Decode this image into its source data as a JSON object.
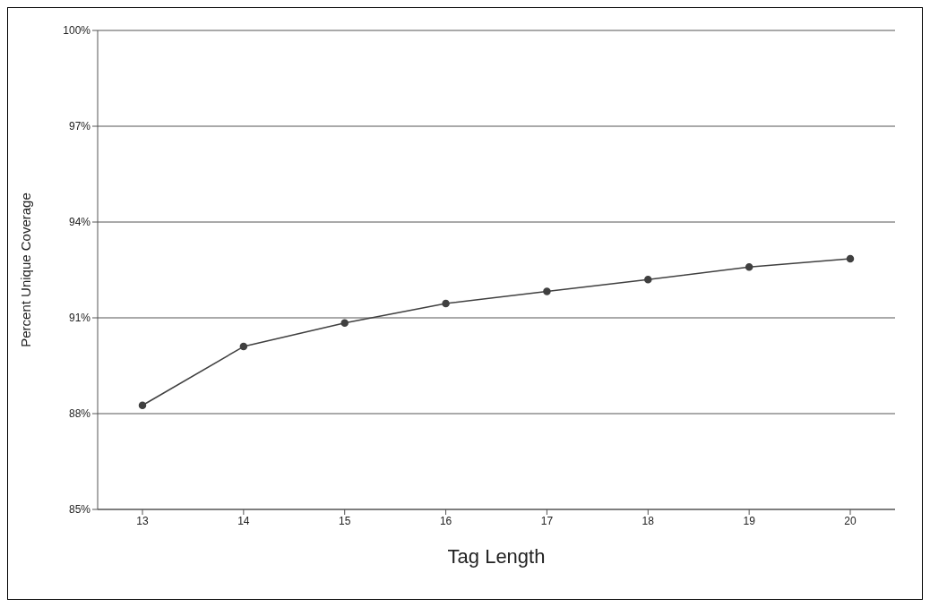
{
  "chart_data": {
    "type": "line",
    "xlabel": "Tag Length",
    "ylabel": "Percent Unique Coverage",
    "categories": [
      "13",
      "14",
      "15",
      "16",
      "17",
      "18",
      "19",
      "20"
    ],
    "series": [
      {
        "color": "#404040",
        "values": [
          88.26,
          90.1,
          90.84,
          91.45,
          91.83,
          92.2,
          92.59,
          92.85
        ]
      }
    ],
    "ylim": [
      85,
      100
    ],
    "yticks": [
      {
        "value": 85,
        "label": "85%"
      },
      {
        "value": 88,
        "label": "88%"
      },
      {
        "value": 91,
        "label": "91%"
      },
      {
        "value": 94,
        "label": "94%"
      },
      {
        "value": 97,
        "label": "97%"
      },
      {
        "value": 100,
        "label": "100%"
      }
    ],
    "grid": "y",
    "marker": "circle"
  }
}
